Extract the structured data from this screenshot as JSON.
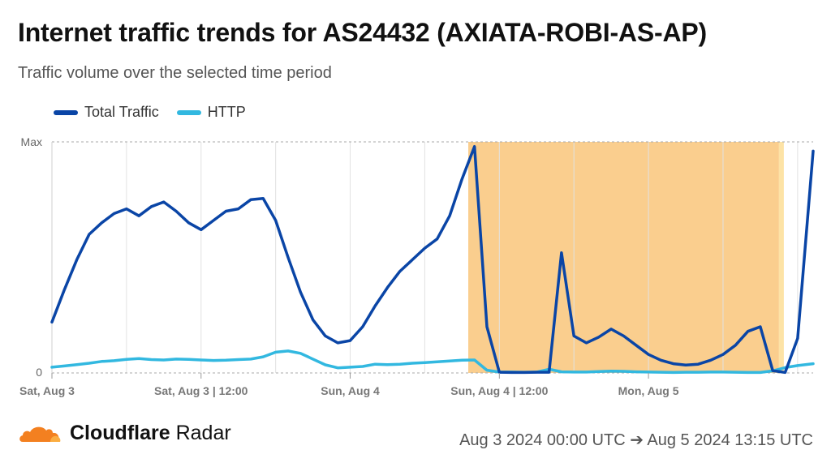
{
  "header": {
    "title": "Internet traffic trends for AS24432 (AXIATA-ROBI-AS-AP)",
    "subtitle": "Traffic volume over the selected time period"
  },
  "footer": {
    "brand_bold": "Cloudflare",
    "brand_light": "Radar",
    "date_range": "Aug 3 2024 00:00 UTC ➔ Aug 5 2024 13:15 UTC"
  },
  "colors": {
    "total": "#0a45a6",
    "http": "#32b8e0",
    "outage": "#f9c57a",
    "logo_orange": "#f38020",
    "logo_light": "#fbad41"
  },
  "chart_data": {
    "type": "line",
    "title": "Internet traffic trends for AS24432 (AXIATA-ROBI-AS-AP)",
    "subtitle": "Traffic volume over the selected time period",
    "x_unit": "hours since Aug 3 2024 00:00 UTC",
    "xlim": [
      0,
      61.25
    ],
    "ylim": [
      0,
      1
    ],
    "ytick_labels": [
      "0",
      "Max"
    ],
    "x_ticks": [
      {
        "x": 0,
        "label": "Sat, Aug 3"
      },
      {
        "x": 12,
        "label": "Sat, Aug 3 | 12:00"
      },
      {
        "x": 24,
        "label": "Sun, Aug 4"
      },
      {
        "x": 36,
        "label": "Sun, Aug 4 | 12:00"
      },
      {
        "x": 48,
        "label": "Mon, Aug 5"
      }
    ],
    "highlight_range": [
      33.5,
      58.5
    ],
    "grid": true,
    "legend_position": "top-left",
    "x": [
      0,
      1,
      2,
      3,
      4,
      5,
      6,
      7,
      8,
      9,
      10,
      11,
      12,
      13,
      14,
      15,
      16,
      17,
      18,
      19,
      20,
      21,
      22,
      23,
      24,
      25,
      26,
      27,
      28,
      29,
      30,
      31,
      32,
      33,
      34,
      35,
      36,
      37,
      38,
      39,
      40,
      41,
      42,
      43,
      44,
      45,
      46,
      47,
      48,
      49,
      50,
      51,
      52,
      53,
      54,
      55,
      56,
      57,
      58,
      59,
      60,
      61.25
    ],
    "series": [
      {
        "name": "Total Traffic",
        "values": [
          0.22,
          0.36,
          0.49,
          0.6,
          0.65,
          0.69,
          0.71,
          0.68,
          0.72,
          0.74,
          0.7,
          0.65,
          0.62,
          0.66,
          0.7,
          0.71,
          0.75,
          0.755,
          0.66,
          0.5,
          0.35,
          0.23,
          0.16,
          0.13,
          0.14,
          0.2,
          0.29,
          0.37,
          0.44,
          0.49,
          0.54,
          0.58,
          0.68,
          0.84,
          0.98,
          0.2,
          0.003,
          0.002,
          0.002,
          0.003,
          0.003,
          0.52,
          0.16,
          0.13,
          0.155,
          0.19,
          0.16,
          0.12,
          0.08,
          0.055,
          0.04,
          0.034,
          0.038,
          0.055,
          0.08,
          0.12,
          0.18,
          0.2,
          0.01,
          0.002,
          0.15,
          0.96
        ]
      },
      {
        "name": "HTTP",
        "values": [
          0.025,
          0.03,
          0.036,
          0.042,
          0.05,
          0.053,
          0.059,
          0.062,
          0.058,
          0.056,
          0.06,
          0.059,
          0.056,
          0.054,
          0.055,
          0.058,
          0.06,
          0.07,
          0.09,
          0.095,
          0.085,
          0.06,
          0.035,
          0.022,
          0.025,
          0.028,
          0.038,
          0.036,
          0.038,
          0.042,
          0.045,
          0.048,
          0.052,
          0.055,
          0.056,
          0.012,
          0.004,
          0.004,
          0.003,
          0.004,
          0.016,
          0.005,
          0.004,
          0.004,
          0.006,
          0.008,
          0.007,
          0.005,
          0.004,
          0.003,
          0.002,
          0.003,
          0.003,
          0.004,
          0.004,
          0.003,
          0.002,
          0.002,
          0.009,
          0.023,
          0.032,
          0.04
        ]
      }
    ]
  }
}
